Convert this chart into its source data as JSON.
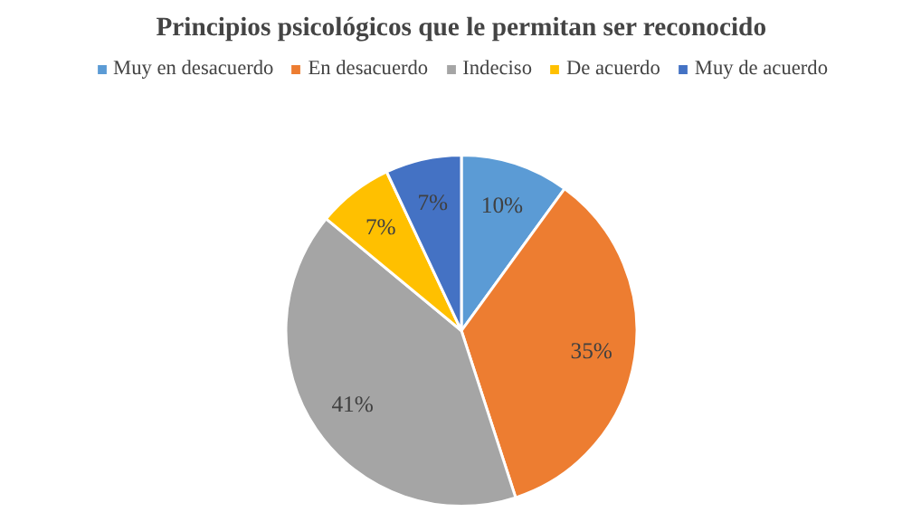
{
  "chart_data": {
    "type": "pie",
    "title": "Principios psicológicos que le permitan ser reconocido",
    "categories": [
      "Muy en desacuerdo",
      "En desacuerdo",
      "Indeciso",
      "De acuerdo",
      "Muy de acuerdo"
    ],
    "values": [
      10,
      35,
      41,
      7,
      7
    ],
    "colors": [
      "#5b9bd5",
      "#ed7d31",
      "#a5a5a5",
      "#ffc000",
      "#4472c4"
    ],
    "value_labels": [
      "10%",
      "35%",
      "41%",
      "7%",
      "7%"
    ],
    "legend": "top"
  }
}
